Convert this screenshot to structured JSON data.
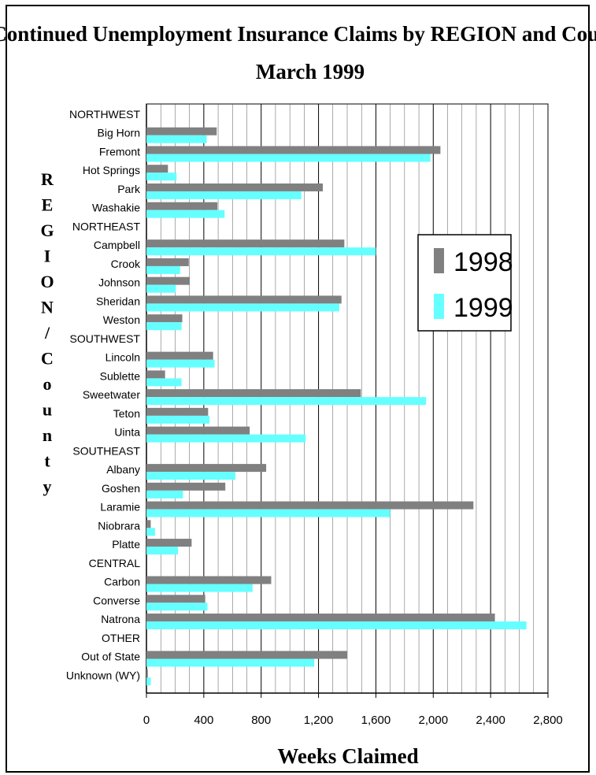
{
  "chart_data": {
    "type": "bar",
    "orientation": "horizontal",
    "title": "Continued Unemployment Insurance Claims by REGION and County",
    "subtitle": "March 1999",
    "xlabel": "Weeks Claimed",
    "ylabel": "REGION/County",
    "xlim": [
      0,
      2800
    ],
    "xticks": [
      "0",
      "400",
      "800",
      "1,200",
      "1,600",
      "2,000",
      "2,400",
      "2,800"
    ],
    "grid": true,
    "legend_position": "right",
    "categories": [
      "NORTHWEST",
      "Big Horn",
      "Fremont",
      "Hot Springs",
      "Park",
      "Washakie",
      "NORTHEAST",
      "Campbell",
      "Crook",
      "Johnson",
      "Sheridan",
      "Weston",
      "SOUTHWEST",
      "Lincoln",
      "Sublette",
      "Sweetwater",
      "Teton",
      "Uinta",
      "SOUTHEAST",
      "Albany",
      "Goshen",
      "Laramie",
      "Niobrara",
      "Platte",
      "CENTRAL",
      "Carbon",
      "Converse",
      "Natrona",
      "OTHER",
      "Out of State",
      "Unknown (WY)"
    ],
    "series": [
      {
        "name": "1998",
        "color": "#808080",
        "values": [
          null,
          490,
          2050,
          150,
          1230,
          495,
          null,
          1380,
          295,
          300,
          1360,
          250,
          null,
          465,
          130,
          1495,
          430,
          720,
          null,
          835,
          550,
          2280,
          30,
          315,
          null,
          870,
          410,
          2430,
          null,
          1400,
          10
        ]
      },
      {
        "name": "1999",
        "color": "#66ffff",
        "values": [
          null,
          420,
          1980,
          210,
          1080,
          545,
          null,
          1600,
          235,
          205,
          1345,
          245,
          null,
          475,
          245,
          1950,
          440,
          1110,
          null,
          620,
          255,
          1700,
          60,
          220,
          null,
          740,
          425,
          2650,
          null,
          1170,
          30
        ]
      }
    ]
  }
}
